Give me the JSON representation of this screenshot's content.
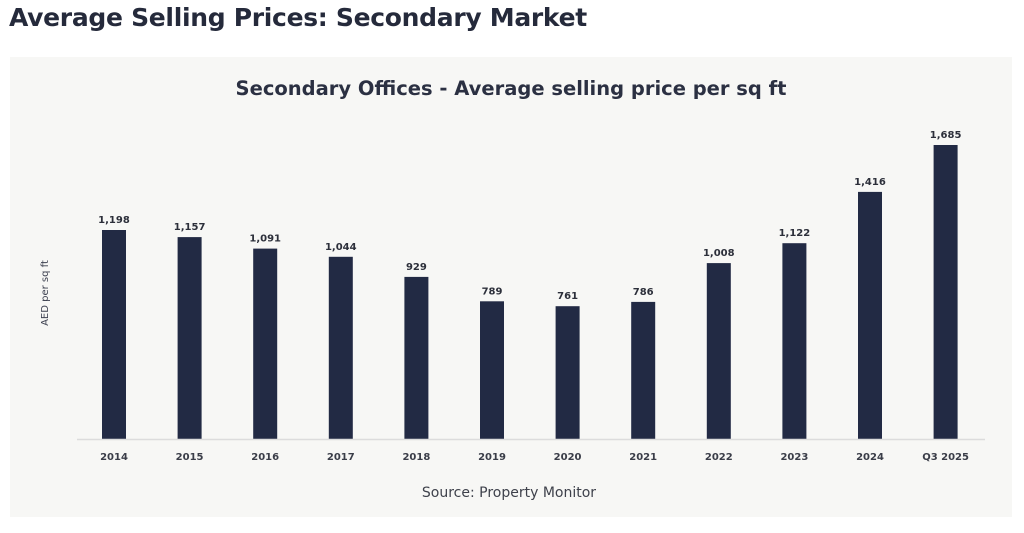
{
  "page": {
    "heading": "Average Selling Prices: Secondary Market"
  },
  "colors": {
    "bar": "#222a44",
    "panel_background": "#f7f7f5",
    "baseline": "#dcdcdc"
  },
  "chart_data": {
    "type": "bar",
    "title": "Secondary Offices - Average selling price per sq ft",
    "xlabel": "",
    "ylabel": "AED per sq ft",
    "source": "Source: Property Monitor",
    "categories": [
      "2014",
      "2015",
      "2016",
      "2017",
      "2018",
      "2019",
      "2020",
      "2021",
      "2022",
      "2023",
      "2024",
      "Q3 2025"
    ],
    "values": [
      1198,
      1157,
      1091,
      1044,
      929,
      789,
      761,
      786,
      1008,
      1122,
      1416,
      1685
    ],
    "data_labels": [
      "1,198",
      "1,157",
      "1,091",
      "1,044",
      "929",
      "789",
      "761",
      "786",
      "1,008",
      "1,122",
      "1,416",
      "1,685"
    ],
    "ylim": [
      0,
      1685
    ],
    "grid": false,
    "legend": "none"
  }
}
